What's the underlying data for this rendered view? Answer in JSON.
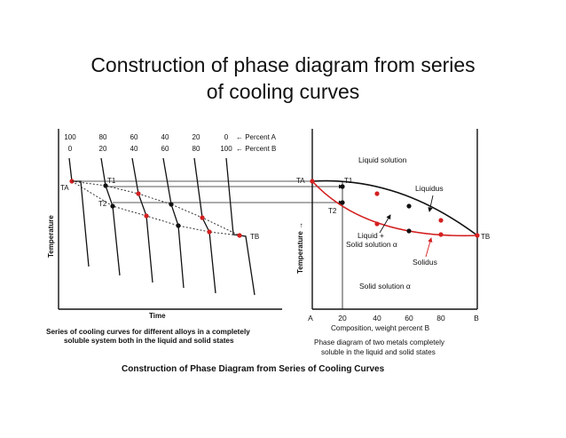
{
  "title_line1": "Construction of phase diagram from series",
  "title_line2": "of cooling curves",
  "left": {
    "percent_a_values": [
      "100",
      "80",
      "60",
      "40",
      "20",
      "0"
    ],
    "percent_b_values": [
      "0",
      "20",
      "40",
      "60",
      "80",
      "100"
    ],
    "percent_a_label": "← Percent A",
    "percent_b_label": "← Percent B",
    "y_axis_label": "Temperature",
    "x_axis_label": "Time",
    "ta_label": "TA",
    "tb_label": "TB",
    "t1_label": "T1",
    "t2_label": "T2",
    "caption_line1": "Series of cooling curves for different alloys in a completely",
    "caption_line2": "soluble system both in the liquid and solid states"
  },
  "right": {
    "y_axis_label": "Temperature →",
    "x_ticks": [
      "A",
      "20",
      "40",
      "60",
      "80",
      "B"
    ],
    "x_axis_label": "Composition, weight percent B",
    "ta_label": "TA",
    "tb_label": "TB",
    "t1_label": "T1",
    "t2_label": "T2",
    "liquid_solution": "Liquid solution",
    "liquidus": "Liquidus",
    "liquid_plus_line1": "Liquid +",
    "liquid_plus_line2": "Solid solution α",
    "solidus": "Solidus",
    "solid_solution": "Solid solution α",
    "caption_line1": "Phase diagram of two metals completely",
    "caption_line2": "soluble in the liquid and solid states"
  },
  "figure_caption": "Construction of Phase Diagram from Series of Cooling Curves",
  "colors": {
    "line": "#111111",
    "red": "#d42020"
  }
}
